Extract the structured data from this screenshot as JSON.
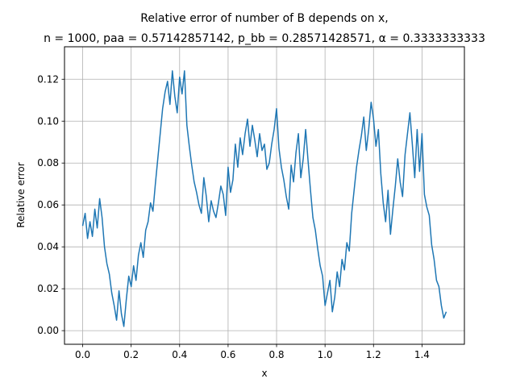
{
  "chart_data": {
    "type": "line",
    "title_lines": [
      "Relative error of number of B depends on x,",
      "n = 1000, paa = 0.57142857142, p_bb = 0.28571428571, α = 0.3333333333"
    ],
    "xlabel": "x",
    "ylabel": "Relative error",
    "xlim": [
      -0.075,
      1.575
    ],
    "ylim": [
      -0.0065,
      0.1355
    ],
    "xticks": [
      0.0,
      0.2,
      0.4,
      0.6,
      0.8,
      1.0,
      1.2,
      1.4
    ],
    "xtick_labels": [
      "0.0",
      "0.2",
      "0.4",
      "0.6",
      "0.8",
      "1.0",
      "1.2",
      "1.4"
    ],
    "yticks": [
      0.0,
      0.02,
      0.04,
      0.06,
      0.08,
      0.1,
      0.12
    ],
    "ytick_labels": [
      "0.00",
      "0.02",
      "0.04",
      "0.06",
      "0.08",
      "0.10",
      "0.12"
    ],
    "grid": true,
    "line_color": "#1f77b4",
    "series": [
      {
        "x": [
          0.0,
          0.01,
          0.02,
          0.03,
          0.04,
          0.05,
          0.06,
          0.07,
          0.08,
          0.09,
          0.1,
          0.11,
          0.12,
          0.13,
          0.14,
          0.15,
          0.16,
          0.17,
          0.18,
          0.19,
          0.2,
          0.21,
          0.22,
          0.23,
          0.24,
          0.25,
          0.26,
          0.27,
          0.28,
          0.29,
          0.3,
          0.31,
          0.32,
          0.33,
          0.34,
          0.35,
          0.36,
          0.37,
          0.38,
          0.39,
          0.4,
          0.41,
          0.42,
          0.43,
          0.44,
          0.45,
          0.46,
          0.47,
          0.48,
          0.49,
          0.5,
          0.51,
          0.52,
          0.53,
          0.54,
          0.55,
          0.56,
          0.57,
          0.58,
          0.59,
          0.6,
          0.61,
          0.62,
          0.63,
          0.64,
          0.65,
          0.66,
          0.67,
          0.68,
          0.69,
          0.7,
          0.71,
          0.72,
          0.73,
          0.74,
          0.75,
          0.76,
          0.77,
          0.78,
          0.79,
          0.8,
          0.81,
          0.82,
          0.83,
          0.84,
          0.85,
          0.86,
          0.87,
          0.88,
          0.89,
          0.9,
          0.91,
          0.92,
          0.93,
          0.94,
          0.95,
          0.96,
          0.97,
          0.98,
          0.99,
          1.0,
          1.01,
          1.02,
          1.03,
          1.04,
          1.05,
          1.06,
          1.07,
          1.08,
          1.09,
          1.1,
          1.11,
          1.12,
          1.13,
          1.14,
          1.15,
          1.16,
          1.17,
          1.18,
          1.19,
          1.2,
          1.21,
          1.22,
          1.23,
          1.24,
          1.25,
          1.26,
          1.27,
          1.28,
          1.29,
          1.3,
          1.31,
          1.32,
          1.33,
          1.34,
          1.35,
          1.36,
          1.37,
          1.38,
          1.39,
          1.4,
          1.41,
          1.42,
          1.43,
          1.44,
          1.45,
          1.46,
          1.47,
          1.48,
          1.49,
          1.5
        ],
        "y": [
          0.05,
          0.056,
          0.044,
          0.052,
          0.045,
          0.058,
          0.049,
          0.063,
          0.054,
          0.04,
          0.032,
          0.027,
          0.018,
          0.012,
          0.005,
          0.019,
          0.008,
          0.002,
          0.015,
          0.026,
          0.021,
          0.031,
          0.024,
          0.036,
          0.042,
          0.035,
          0.048,
          0.052,
          0.061,
          0.057,
          0.07,
          0.082,
          0.094,
          0.106,
          0.114,
          0.119,
          0.108,
          0.124,
          0.112,
          0.104,
          0.121,
          0.113,
          0.124,
          0.098,
          0.088,
          0.079,
          0.071,
          0.066,
          0.06,
          0.056,
          0.073,
          0.064,
          0.052,
          0.062,
          0.057,
          0.054,
          0.061,
          0.069,
          0.065,
          0.055,
          0.078,
          0.066,
          0.072,
          0.089,
          0.078,
          0.092,
          0.084,
          0.094,
          0.101,
          0.088,
          0.098,
          0.091,
          0.083,
          0.094,
          0.086,
          0.089,
          0.077,
          0.08,
          0.089,
          0.096,
          0.106,
          0.087,
          0.078,
          0.072,
          0.064,
          0.058,
          0.079,
          0.071,
          0.085,
          0.094,
          0.073,
          0.082,
          0.096,
          0.081,
          0.067,
          0.054,
          0.048,
          0.039,
          0.031,
          0.026,
          0.012,
          0.018,
          0.024,
          0.009,
          0.016,
          0.028,
          0.021,
          0.034,
          0.029,
          0.042,
          0.038,
          0.056,
          0.067,
          0.078,
          0.086,
          0.093,
          0.102,
          0.086,
          0.096,
          0.109,
          0.101,
          0.088,
          0.096,
          0.075,
          0.061,
          0.052,
          0.067,
          0.046,
          0.058,
          0.069,
          0.082,
          0.071,
          0.064,
          0.084,
          0.094,
          0.104,
          0.089,
          0.073,
          0.096,
          0.076,
          0.094,
          0.065,
          0.059,
          0.055,
          0.041,
          0.034,
          0.024,
          0.021,
          0.012,
          0.006,
          0.009
        ]
      }
    ]
  }
}
